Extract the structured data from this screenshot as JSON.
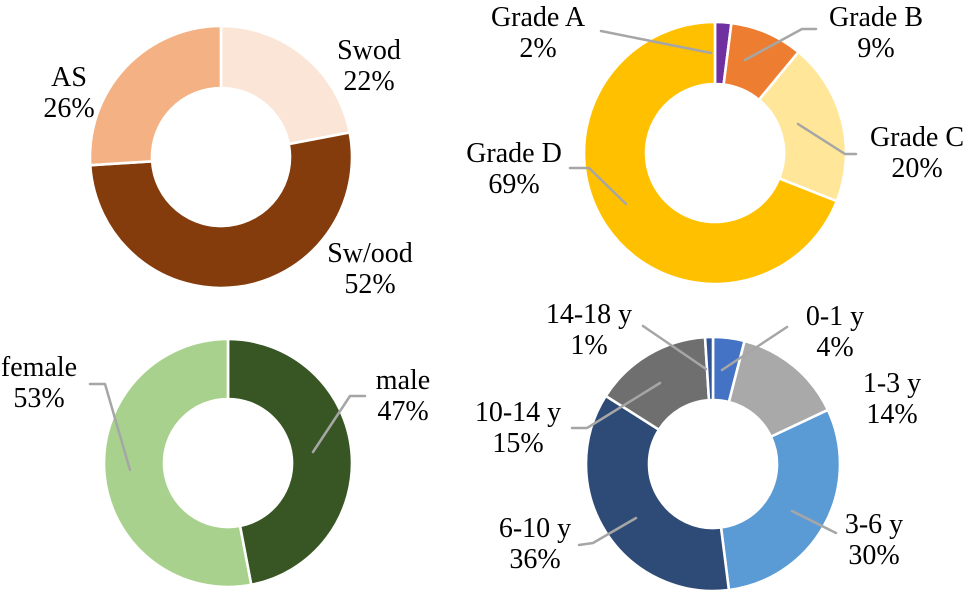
{
  "figure": {
    "type": "donut-chart-grid",
    "background": "#FFFFFF",
    "text_color": "#000000",
    "leader_line_color": "#A6A6A6",
    "slice_gap_color": "#FFFFFF"
  },
  "chart_data": [
    {
      "type": "pie",
      "subtype": "donut",
      "position": "top-left",
      "start_angle": "12-o-clock",
      "direction": "clockwise",
      "legend": "none",
      "labels": "callout name + percent",
      "slices": [
        {
          "label": "Swod",
          "value": 22,
          "pct_label": "22%",
          "color": "#FBE5D6"
        },
        {
          "label": "Sw/ood",
          "value": 52,
          "pct_label": "52%",
          "color": "#843C0C"
        },
        {
          "label": "AS",
          "value": 26,
          "pct_label": "26%",
          "color": "#F4B183"
        }
      ]
    },
    {
      "type": "pie",
      "subtype": "donut",
      "position": "top-right",
      "start_angle": "12-o-clock",
      "direction": "clockwise",
      "legend": "none",
      "labels": "callout name + percent",
      "slices": [
        {
          "label": "Grade A",
          "value": 2,
          "pct_label": "2%",
          "color": "#7030A0"
        },
        {
          "label": "Grade B",
          "value": 9,
          "pct_label": "9%",
          "color": "#ED7D31"
        },
        {
          "label": "Grade C",
          "value": 20,
          "pct_label": "20%",
          "color": "#FFE699"
        },
        {
          "label": "Grade D",
          "value": 69,
          "pct_label": "69%",
          "color": "#FFC000"
        }
      ]
    },
    {
      "type": "pie",
      "subtype": "donut",
      "position": "bottom-left",
      "start_angle": "12-o-clock",
      "direction": "clockwise",
      "legend": "none",
      "labels": "callout name + percent",
      "slices": [
        {
          "label": "male",
          "value": 47,
          "pct_label": "47%",
          "color": "#375623"
        },
        {
          "label": "female",
          "value": 53,
          "pct_label": "53%",
          "color": "#A9D18E"
        }
      ]
    },
    {
      "type": "pie",
      "subtype": "donut",
      "position": "bottom-right",
      "start_angle": "12-o-clock",
      "direction": "clockwise",
      "legend": "none",
      "labels": "callout name + percent",
      "slices": [
        {
          "label": "0-1 y",
          "value": 4,
          "pct_label": "4%",
          "color": "#4472C4"
        },
        {
          "label": "1-3 y",
          "value": 14,
          "pct_label": "14%",
          "color": "#A9A9A9"
        },
        {
          "label": "3-6 y",
          "value": 30,
          "pct_label": "30%",
          "color": "#5B9BD5"
        },
        {
          "label": "6-10 y",
          "value": 36,
          "pct_label": "36%",
          "color": "#2E4B78"
        },
        {
          "label": "10-14 y",
          "value": 15,
          "pct_label": "15%",
          "color": "#6F6F6F"
        },
        {
          "label": "14-18 y",
          "value": 1,
          "pct_label": "1%",
          "color": "#2F5597"
        }
      ]
    }
  ]
}
